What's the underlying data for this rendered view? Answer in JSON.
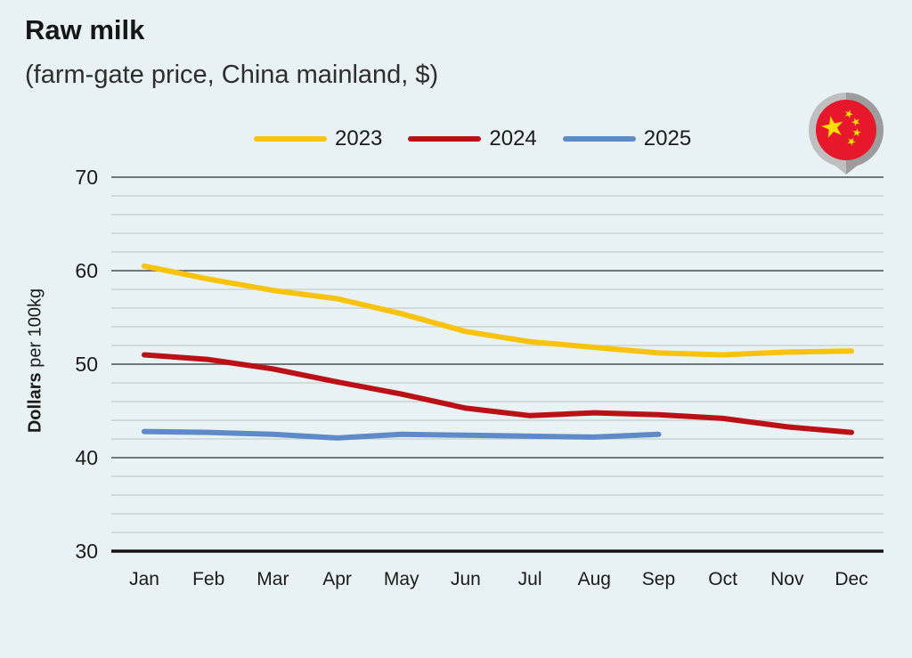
{
  "header": {
    "title": "Raw milk",
    "subtitle": "(farm-gate price, China mainland, $)"
  },
  "ylabel": {
    "bold_part": "Dollars",
    "regular_part": " per 100kg"
  },
  "icon": {
    "name": "china-flag-location-pin"
  },
  "colors": {
    "background": "#e8f1f3",
    "grid_minor": "#c3ced2",
    "grid_major": "#70777a",
    "axis_bottom": "#141414",
    "text": "#1b1b1b",
    "flag_red": "#e7182b",
    "flag_yellow": "#ffde00",
    "pin_gray_light": "#bfbfbf",
    "pin_gray_dark": "#9c9c9c"
  },
  "chart_data": {
    "type": "line",
    "title": "Raw milk",
    "subtitle": "(farm-gate price, China mainland, $)",
    "ylabel": "Dollars per 100kg",
    "xlabel": "",
    "categories": [
      "Jan",
      "Feb",
      "Mar",
      "Apr",
      "May",
      "Jun",
      "Jul",
      "Aug",
      "Sep",
      "Oct",
      "Nov",
      "Dec"
    ],
    "ylim": [
      30,
      70
    ],
    "yticks": [
      30,
      40,
      50,
      60,
      70
    ],
    "minor_grid_step": 2,
    "grid": true,
    "legend_position": "top",
    "series": [
      {
        "name": "2023",
        "color": "#f9c20d",
        "values": [
          60.5,
          59.1,
          57.9,
          57.0,
          55.4,
          53.5,
          52.4,
          51.8,
          51.2,
          51.0,
          51.3,
          51.4
        ]
      },
      {
        "name": "2024",
        "color": "#bb1016",
        "values": [
          51.0,
          50.5,
          49.5,
          48.1,
          46.8,
          45.3,
          44.5,
          44.8,
          44.6,
          44.2,
          43.3,
          42.7
        ]
      },
      {
        "name": "2025",
        "color": "#5e8ac7",
        "values": [
          42.8,
          42.7,
          42.5,
          42.1,
          42.5,
          42.4,
          42.3,
          42.2,
          42.5,
          null,
          null,
          null
        ]
      }
    ]
  }
}
